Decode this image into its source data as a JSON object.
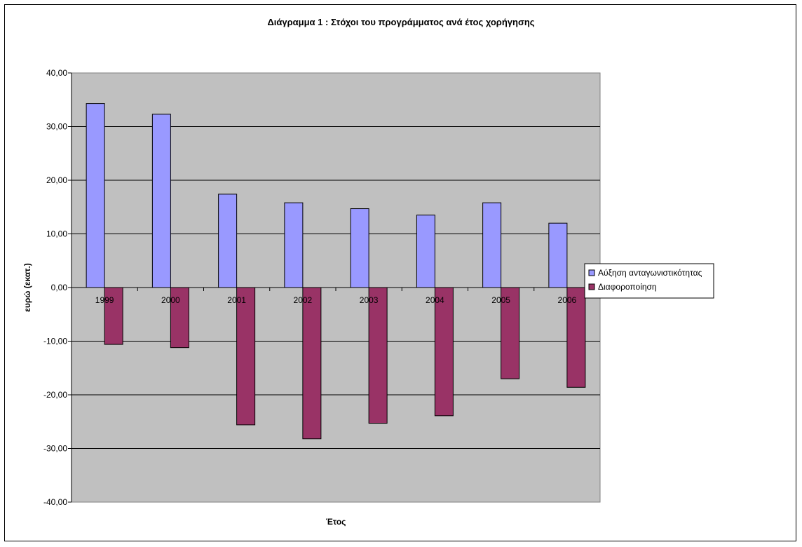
{
  "chart_data": {
    "type": "bar",
    "title": "Διάγραμμα 1 : Στόχοι του προγράμματος ανά έτος χορήγησης",
    "xlabel": "Έτος",
    "ylabel": "ευρώ (εκατ.)",
    "categories": [
      "1999",
      "2000",
      "2001",
      "2002",
      "2003",
      "2004",
      "2005",
      "2006"
    ],
    "series": [
      {
        "name": "Αύξηση ανταγωνιστικότητας",
        "color": "#9999ff",
        "values": [
          34.3,
          32.3,
          17.4,
          15.8,
          14.7,
          13.5,
          15.8,
          12.0
        ]
      },
      {
        "name": "Διαφοροποίηση",
        "color": "#993366",
        "values": [
          -10.6,
          -11.2,
          -25.6,
          -28.2,
          -25.3,
          -23.9,
          -17.0,
          -18.6
        ]
      }
    ],
    "ylim": [
      -40,
      40
    ],
    "yticks": [
      40,
      30,
      20,
      10,
      0,
      -10,
      -20,
      -30,
      -40
    ],
    "ytick_labels": [
      "40,00",
      "30,00",
      "20,00",
      "10,00",
      "0,00",
      "-10,00",
      "-20,00",
      "-30,00",
      "-40,00"
    ],
    "grid": true,
    "plot_background": "#c0c0c0",
    "legend_position": "right"
  }
}
